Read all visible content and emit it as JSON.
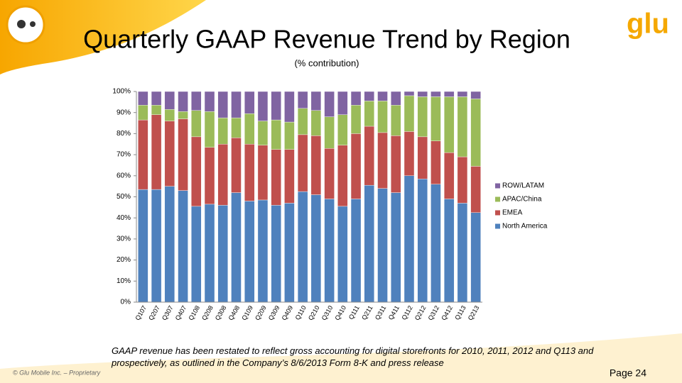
{
  "chart_data": {
    "type": "stacked_bar",
    "title": "Quarterly GAAP Revenue Trend by Region",
    "subtitle": "(% contribution)",
    "categories": [
      "Q107",
      "Q207",
      "Q307",
      "Q407",
      "Q108",
      "Q208",
      "Q308",
      "Q408",
      "Q109",
      "Q209",
      "Q309",
      "Q409",
      "Q110",
      "Q210",
      "Q310",
      "Q410",
      "Q111",
      "Q211",
      "Q311",
      "Q411",
      "Q112",
      "Q212",
      "Q312",
      "Q412",
      "Q113",
      "Q213"
    ],
    "series": [
      {
        "name": "North America",
        "color": "#4f81bd",
        "values": [
          53.5,
          53.5,
          55,
          53,
          45.5,
          46.5,
          46,
          52,
          48,
          48.5,
          46,
          47,
          52.5,
          51,
          49,
          45.5,
          49,
          55.5,
          54,
          52,
          60,
          58.5,
          56,
          49,
          47,
          42.5
        ]
      },
      {
        "name": "EMEA",
        "color": "#c0504d",
        "values": [
          33,
          35.5,
          31,
          34,
          33,
          27,
          29,
          26,
          27,
          26,
          26.5,
          25.5,
          27,
          28,
          24,
          29,
          31,
          28,
          26.5,
          27,
          21,
          20,
          20.5,
          22,
          22,
          22
        ]
      },
      {
        "name": "APAC/China",
        "color": "#9bbb59",
        "values": [
          7,
          4.5,
          5.5,
          3.5,
          12.5,
          17,
          12.5,
          9.5,
          14.5,
          11.5,
          14,
          13,
          12.5,
          12,
          15,
          14.5,
          13.5,
          12,
          15,
          14.5,
          17,
          19,
          21,
          26.5,
          28.5,
          32
        ]
      },
      {
        "name": "ROW/LATAM",
        "color": "#8064a2",
        "values": [
          6.5,
          6.5,
          8.5,
          9.5,
          9,
          9.5,
          12.5,
          12.5,
          10.5,
          14,
          13.5,
          14.5,
          8,
          9,
          12,
          11,
          6.5,
          4.5,
          4.5,
          6.5,
          2,
          2.5,
          2.5,
          2.5,
          2.5,
          3.5
        ]
      }
    ],
    "ylim": [
      0,
      100
    ],
    "yticks": [
      {
        "value": 0,
        "label": "0%"
      },
      {
        "value": 10,
        "label": "10%"
      },
      {
        "value": 20,
        "label": "20%"
      },
      {
        "value": 30,
        "label": "30%"
      },
      {
        "value": 40,
        "label": "40%"
      },
      {
        "value": 50,
        "label": "50%"
      },
      {
        "value": 60,
        "label": "60%"
      },
      {
        "value": 70,
        "label": "70%"
      },
      {
        "value": 80,
        "label": "80%"
      },
      {
        "value": 90,
        "label": "90%"
      },
      {
        "value": 100,
        "label": "100%"
      }
    ],
    "grid": false,
    "legend": "right"
  },
  "slide": {
    "logo": "glu",
    "footnote": "GAAP revenue has been restated to reflect gross accounting for digital storefronts for 2010, 2011, 2012  and Q113 and prospectively, as outlined in the Company’s 8/6/2013 Form 8-K and press release",
    "copyright": "© Glu Mobile Inc. – Proprietary",
    "page": "Page 24"
  }
}
